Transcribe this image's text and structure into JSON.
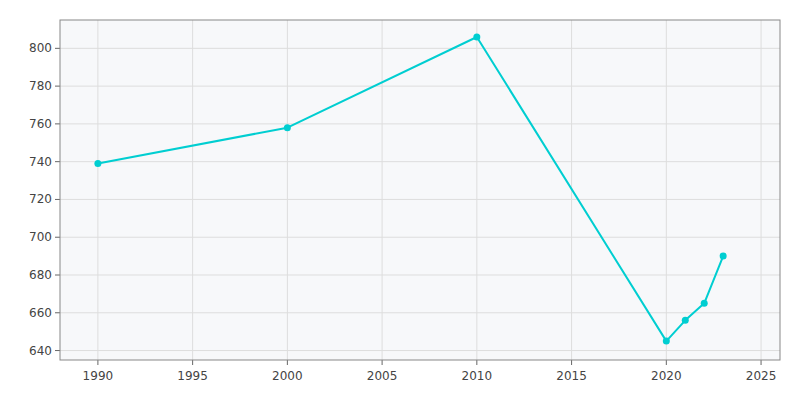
{
  "chart_data": {
    "type": "line",
    "x": [
      1990,
      2000,
      2010,
      2020,
      2021,
      2022,
      2023
    ],
    "values": [
      739,
      758,
      806,
      645,
      656,
      665,
      690
    ],
    "color": "#00CED1",
    "marker": "circle",
    "xlim": [
      1988,
      2026
    ],
    "ylim": [
      635,
      815
    ],
    "xticks": [
      1990,
      1995,
      2000,
      2005,
      2010,
      2015,
      2020,
      2025
    ],
    "yticks": [
      640,
      660,
      680,
      700,
      720,
      740,
      760,
      780,
      800
    ],
    "grid": true
  }
}
